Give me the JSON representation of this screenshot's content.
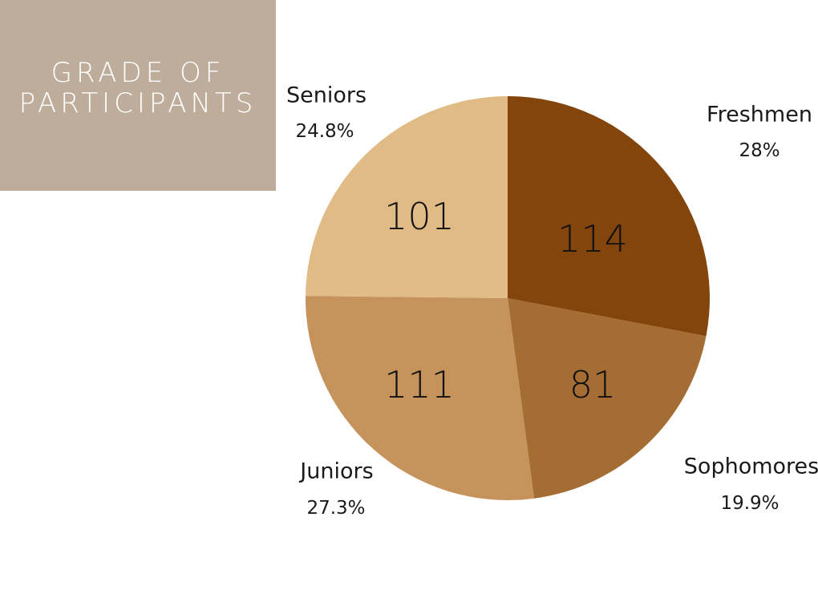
{
  "title": {
    "line1": "GRADE OF",
    "line2": "PARTICIPANTS",
    "background": "#bfad9b"
  },
  "chart_data": {
    "type": "pie",
    "start_angle_deg": 0,
    "direction": "clockwise",
    "slices": [
      {
        "name": "Freshmen",
        "value": 114,
        "percent": "28%",
        "color": "#84450c"
      },
      {
        "name": "Sophomores",
        "value": 81,
        "percent": "19.9%",
        "color": "#a36d33"
      },
      {
        "name": "Juniors",
        "value": 111,
        "percent": "27.3%",
        "color": "#c5935b"
      },
      {
        "name": "Seniors",
        "value": 101,
        "percent": "24.8%",
        "color": "#e0bb86"
      }
    ]
  }
}
